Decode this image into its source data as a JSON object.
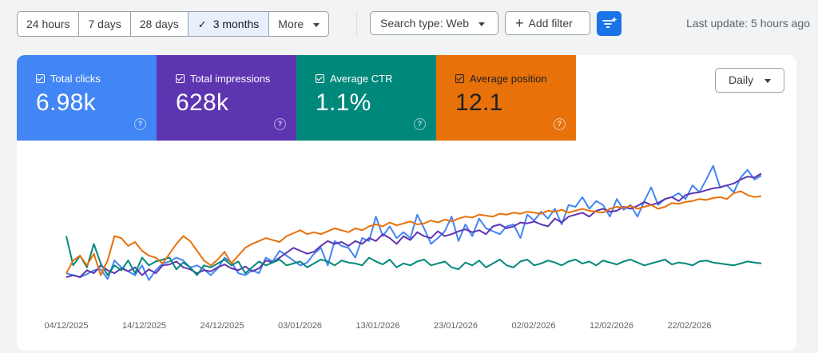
{
  "toolbar": {
    "ranges": [
      {
        "label": "24 hours",
        "selected": false
      },
      {
        "label": "7 days",
        "selected": false
      },
      {
        "label": "28 days",
        "selected": false
      },
      {
        "label": "3 months",
        "selected": true
      },
      {
        "label": "More",
        "selected": false
      }
    ],
    "search_type": "Search type: Web",
    "add_filter": "Add filter",
    "last_update": "Last update: 5 hours ago"
  },
  "metrics": [
    {
      "label": "Total clicks",
      "value": "6.98k",
      "color": "#4285f4"
    },
    {
      "label": "Total impressions",
      "value": "628k",
      "color": "#5e35b1"
    },
    {
      "label": "Average CTR",
      "value": "1.1%",
      "color": "#00897b"
    },
    {
      "label": "Average position",
      "value": "12.1",
      "color": "#e8710a"
    }
  ],
  "granularity": "Daily",
  "chart_data": {
    "type": "line",
    "x_labels": [
      "04/12/2025",
      "14/12/2025",
      "24/12/2025",
      "03/01/2026",
      "13/01/2026",
      "23/01/2026",
      "02/02/2026",
      "12/02/2026",
      "22/02/2026"
    ],
    "series": [
      {
        "name": "Total clicks",
        "color": "#4285f4",
        "values": [
          22,
          20,
          18,
          21,
          25,
          26,
          16,
          35,
          28,
          24,
          20,
          30,
          15,
          25,
          32,
          34,
          38,
          35,
          28,
          30,
          26,
          20,
          27,
          38,
          33,
          22,
          20,
          25,
          22,
          38,
          34,
          45,
          40,
          35,
          30,
          33,
          42,
          48,
          30,
          55,
          50,
          48,
          38,
          58,
          55,
          80,
          60,
          70,
          58,
          64,
          58,
          82,
          68,
          52,
          58,
          65,
          80,
          55,
          72,
          60,
          78,
          68,
          65,
          62,
          70,
          72,
          58,
          82,
          76,
          85,
          78,
          88,
          72,
          92,
          90,
          100,
          88,
          96,
          92,
          80,
          98,
          87,
          92,
          80,
          96,
          110,
          92,
          98,
          100,
          104,
          98,
          112,
          105,
          118,
          132,
          110,
          112,
          105,
          120,
          128,
          118,
          122
        ]
      },
      {
        "name": "Total impressions",
        "color": "#5e35b1",
        "values": [
          18,
          20,
          18,
          25,
          22,
          30,
          25,
          22,
          27,
          24,
          28,
          20,
          26,
          22,
          30,
          31,
          34,
          28,
          26,
          22,
          25,
          24,
          28,
          31,
          27,
          25,
          29,
          24,
          27,
          35,
          33,
          38,
          43,
          48,
          45,
          42,
          44,
          50,
          55,
          52,
          54,
          50,
          55,
          52,
          58,
          55,
          62,
          58,
          52,
          60,
          56,
          64,
          60,
          58,
          65,
          60,
          62,
          65,
          67,
          64,
          66,
          62,
          70,
          72,
          68,
          70,
          74,
          73,
          75,
          72,
          70,
          78,
          74,
          80,
          82,
          84,
          80,
          86,
          88,
          85,
          86,
          90,
          88,
          91,
          95,
          92,
          94,
          98,
          100,
          96,
          102,
          104,
          105,
          107,
          109,
          110,
          112,
          114,
          118,
          121,
          120,
          124
        ]
      },
      {
        "name": "Average CTR",
        "color": "#00897b",
        "values": [
          60,
          30,
          40,
          28,
          52,
          32,
          20,
          30,
          25,
          35,
          22,
          38,
          30,
          34,
          36,
          38,
          26,
          33,
          28,
          20,
          30,
          28,
          32,
          36,
          30,
          34,
          22,
          28,
          34,
          30,
          33,
          36,
          30,
          32,
          34,
          28,
          32,
          36,
          34,
          30,
          35,
          33,
          32,
          30,
          38,
          34,
          31,
          36,
          28,
          32,
          30,
          34,
          36,
          30,
          32,
          34,
          28,
          26,
          33,
          30,
          35,
          28,
          32,
          36,
          30,
          28,
          34,
          36,
          30,
          32,
          35,
          33,
          30,
          34,
          36,
          32,
          34,
          30,
          35,
          33,
          31,
          34,
          36,
          33,
          30,
          32,
          34,
          36,
          31,
          33,
          32,
          30,
          34,
          35,
          33,
          32,
          31,
          30,
          32,
          34,
          33,
          32
        ]
      },
      {
        "name": "Average position",
        "color": "#e8710a",
        "values": [
          22,
          35,
          40,
          30,
          42,
          20,
          35,
          60,
          58,
          50,
          54,
          45,
          40,
          38,
          32,
          42,
          52,
          60,
          55,
          45,
          35,
          30,
          36,
          44,
          32,
          40,
          48,
          52,
          55,
          58,
          56,
          54,
          60,
          63,
          66,
          62,
          64,
          62,
          65,
          68,
          66,
          64,
          68,
          66,
          70,
          72,
          70,
          74,
          71,
          73,
          75,
          72,
          73,
          76,
          74,
          77,
          75,
          78,
          80,
          79,
          82,
          81,
          80,
          83,
          82,
          84,
          83,
          85,
          84,
          83,
          86,
          85,
          87,
          84,
          86,
          88,
          86,
          85,
          84,
          88,
          90,
          89,
          91,
          88,
          90,
          92,
          88,
          90,
          94,
          93,
          95,
          96,
          98,
          97,
          99,
          100,
          98,
          104,
          106,
          102,
          100,
          101
        ]
      }
    ]
  }
}
